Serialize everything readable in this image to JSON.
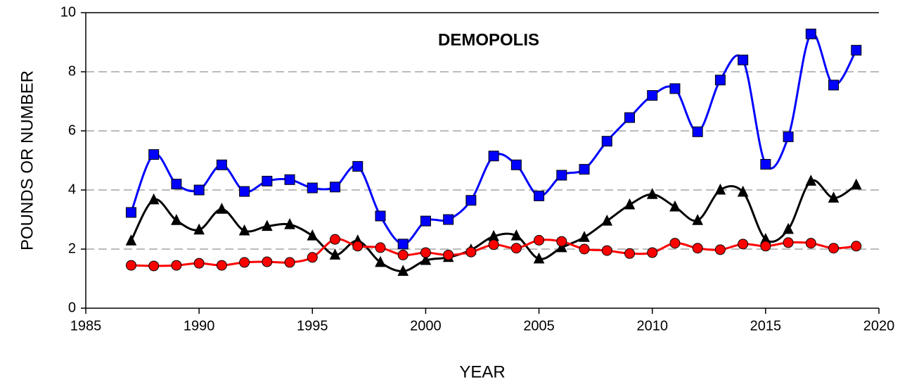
{
  "chart_data": {
    "type": "line",
    "title": "DEMOPOLIS",
    "x_label": "YEAR",
    "y_label": "POUNDS OR NUMBER",
    "x": [
      1987,
      1988,
      1989,
      1990,
      1991,
      1992,
      1993,
      1994,
      1995,
      1996,
      1997,
      1998,
      1999,
      2000,
      2001,
      2002,
      2003,
      2004,
      2005,
      2006,
      2007,
      2008,
      2009,
      2010,
      2011,
      2012,
      2013,
      2014,
      2015,
      2016,
      2017,
      2018,
      2019
    ],
    "series": [
      {
        "color": "#0000ff",
        "marker": "square",
        "values": [
          3.24,
          5.2,
          4.2,
          4.0,
          4.85,
          3.95,
          4.3,
          4.35,
          4.07,
          4.1,
          4.8,
          3.12,
          2.17,
          2.95,
          3.0,
          3.65,
          5.15,
          4.85,
          3.8,
          4.5,
          4.7,
          5.65,
          6.45,
          7.2,
          7.43,
          5.97,
          7.72,
          8.4,
          4.87,
          5.8,
          9.28,
          7.55,
          8.73
        ]
      },
      {
        "color": "#000000",
        "marker": "triangle",
        "values": [
          2.28,
          3.67,
          2.97,
          2.65,
          3.35,
          2.62,
          2.77,
          2.83,
          2.45,
          1.8,
          2.28,
          1.55,
          1.25,
          1.62,
          1.72,
          1.97,
          2.43,
          2.45,
          1.67,
          2.05,
          2.4,
          2.95,
          3.5,
          3.85,
          3.43,
          2.97,
          4.0,
          3.93,
          2.33,
          2.67,
          4.3,
          3.73,
          4.17
        ]
      },
      {
        "color": "#ff0000",
        "marker": "circle",
        "values": [
          1.45,
          1.43,
          1.45,
          1.52,
          1.45,
          1.55,
          1.57,
          1.55,
          1.72,
          2.33,
          2.1,
          2.05,
          1.8,
          1.88,
          1.8,
          1.9,
          2.15,
          2.03,
          2.3,
          2.26,
          2.0,
          1.95,
          1.85,
          1.88,
          2.2,
          2.03,
          1.98,
          2.17,
          2.1,
          2.22,
          2.2,
          2.03,
          2.1
        ]
      }
    ],
    "xlim": [
      1985,
      2020
    ],
    "xticks": [
      1985,
      1990,
      1995,
      2000,
      2005,
      2010,
      2015,
      2020
    ],
    "ylim": [
      0,
      10
    ],
    "yticks": [
      0,
      2,
      4,
      6,
      8,
      10
    ],
    "grid": true
  }
}
